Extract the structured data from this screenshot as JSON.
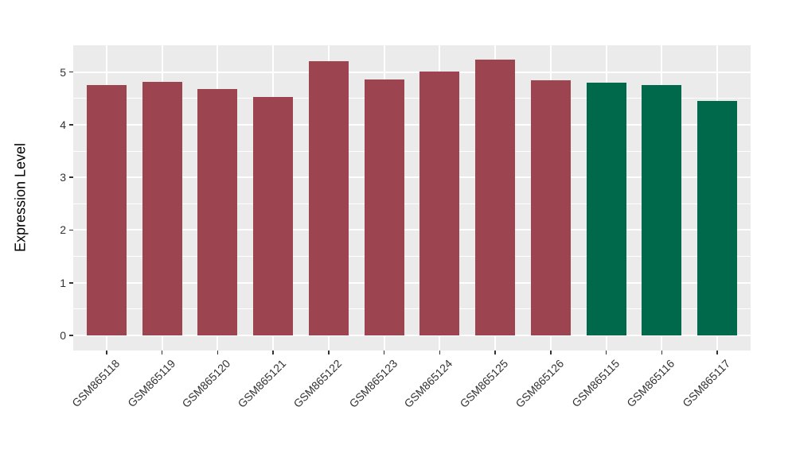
{
  "figure": {
    "panel_bg": "#EBEBEB",
    "grid_color": "#FFFFFF",
    "tick_color": "#333333",
    "axis_title_color": "#000000"
  },
  "chart_data": {
    "type": "bar",
    "title": "",
    "xlabel": "",
    "ylabel": "Expression Level",
    "categories": [
      "GSM865118",
      "GSM865119",
      "GSM865120",
      "GSM865121",
      "GSM865122",
      "GSM865123",
      "GSM865124",
      "GSM865125",
      "GSM865126",
      "GSM865115",
      "GSM865116",
      "GSM865117"
    ],
    "values": [
      4.76,
      4.81,
      4.67,
      4.53,
      5.2,
      4.86,
      5.01,
      5.24,
      4.85,
      4.8,
      4.76,
      4.45
    ],
    "bar_colors": [
      "#9C4450",
      "#9C4450",
      "#9C4450",
      "#9C4450",
      "#9C4450",
      "#9C4450",
      "#9C4450",
      "#9C4450",
      "#9C4450",
      "#01694B",
      "#01694B",
      "#01694B"
    ],
    "color_groups": {
      "maroon": "#9C4450",
      "green": "#01694B"
    },
    "yticks": [
      0,
      1,
      2,
      3,
      4,
      5
    ],
    "ylim": [
      0,
      5.5
    ],
    "grid": "on",
    "legend": "none",
    "x_label_rotation_deg": 45
  }
}
